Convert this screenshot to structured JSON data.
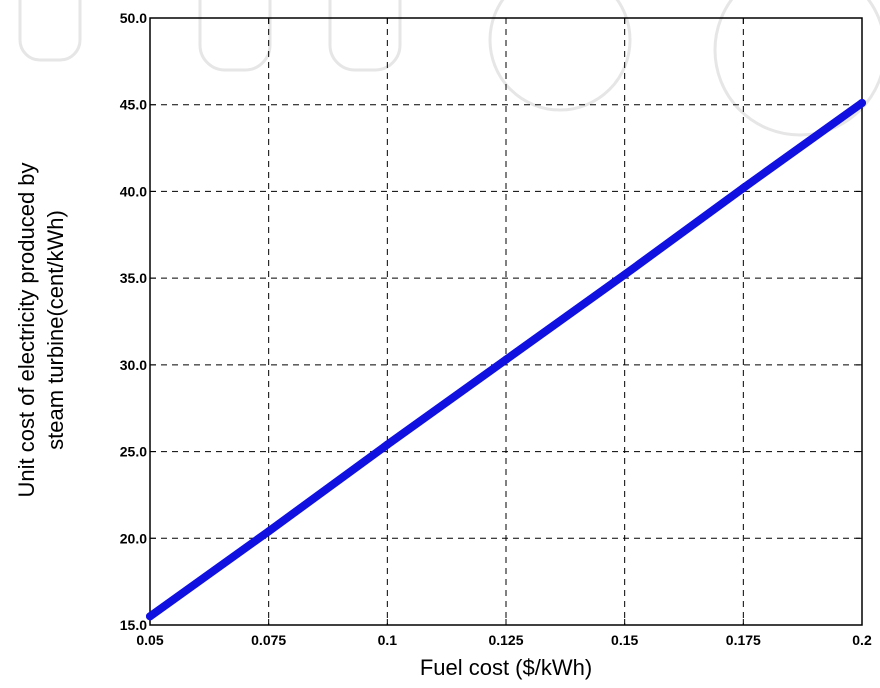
{
  "chart_data": {
    "type": "line",
    "title": "",
    "xlabel": "Fuel cost ($/kWh)",
    "ylabel_line1": "Unit cost of electricity produced by",
    "ylabel_line2": "steam turbine(cent/kWh)",
    "xlim": [
      0.05,
      0.2
    ],
    "ylim": [
      15.0,
      50.0
    ],
    "x_ticks": [
      0.05,
      0.075,
      0.1,
      0.125,
      0.15,
      0.175,
      0.2
    ],
    "x_tick_labels": [
      "0.05",
      "0.075",
      "0.1",
      "0.125",
      "0.15",
      "0.175",
      "0.2"
    ],
    "y_ticks": [
      15.0,
      20.0,
      25.0,
      30.0,
      35.0,
      40.0,
      45.0,
      50.0
    ],
    "y_tick_labels": [
      "15.0",
      "20.0",
      "25.0",
      "30.0",
      "35.0",
      "40.0",
      "45.0",
      "50.0"
    ],
    "grid": true,
    "series": [
      {
        "x": [
          0.05,
          0.075,
          0.1,
          0.125,
          0.15,
          0.175,
          0.2
        ],
        "y": [
          15.5,
          20.4,
          25.4,
          30.3,
          35.2,
          40.2,
          45.1
        ]
      }
    ],
    "colors": {
      "series": "#1010e0",
      "grid": "#000000",
      "watermark": "#e6e6e6"
    }
  }
}
